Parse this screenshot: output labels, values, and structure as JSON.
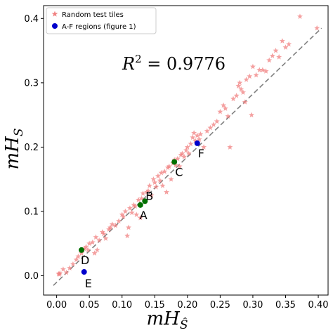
{
  "chart_data": {
    "type": "scatter",
    "xlabel": "mHŜ",
    "ylabel": "mH_S",
    "xlabel_base": "mH",
    "xlabel_sub": "Ŝ",
    "ylabel_base": "mH",
    "ylabel_sub": "S",
    "xlim": [
      -0.02,
      0.415
    ],
    "ylim": [
      -0.03,
      0.42
    ],
    "xticks": [
      0.0,
      0.05,
      0.1,
      0.15,
      0.2,
      0.25,
      0.3,
      0.35,
      0.4
    ],
    "xtick_labels": [
      "0.00",
      "0.05",
      "0.10",
      "0.15",
      "0.20",
      "0.25",
      "0.30",
      "0.35",
      "0.40"
    ],
    "yticks": [
      0.0,
      0.1,
      0.2,
      0.3,
      0.4
    ],
    "ytick_labels": [
      "0.0",
      "0.1",
      "0.2",
      "0.3",
      "0.4"
    ],
    "grid": false,
    "legend_position": "top-left",
    "annotation": "R² = 0.9776",
    "annotation_parts": {
      "base": "R",
      "sup": "2",
      "rest": " = 0.9776"
    },
    "fit_line": {
      "x": [
        -0.005,
        0.405
      ],
      "y": [
        -0.015,
        0.385
      ],
      "color": "#808080",
      "style": "dashed"
    },
    "series": [
      {
        "name": "Random test tiles",
        "marker": "star",
        "color": "#f08080",
        "points": [
          [
            0.003,
            0.003
          ],
          [
            0.004,
            0.002
          ],
          [
            0.005,
            0.004
          ],
          [
            0.01,
            0.01
          ],
          [
            0.015,
            0.005
          ],
          [
            0.02,
            0.012
          ],
          [
            0.025,
            0.018
          ],
          [
            0.03,
            0.025
          ],
          [
            0.033,
            0.03
          ],
          [
            0.038,
            0.035
          ],
          [
            0.04,
            0.04
          ],
          [
            0.042,
            0.042
          ],
          [
            0.045,
            0.045
          ],
          [
            0.048,
            0.04
          ],
          [
            0.05,
            0.05
          ],
          [
            0.055,
            0.052
          ],
          [
            0.058,
            0.035
          ],
          [
            0.06,
            0.06
          ],
          [
            0.062,
            0.04
          ],
          [
            0.065,
            0.055
          ],
          [
            0.07,
            0.068
          ],
          [
            0.072,
            0.065
          ],
          [
            0.075,
            0.058
          ],
          [
            0.08,
            0.072
          ],
          [
            0.082,
            0.075
          ],
          [
            0.085,
            0.08
          ],
          [
            0.09,
            0.078
          ],
          [
            0.095,
            0.085
          ],
          [
            0.1,
            0.095
          ],
          [
            0.102,
            0.092
          ],
          [
            0.105,
            0.1
          ],
          [
            0.108,
            0.062
          ],
          [
            0.11,
            0.075
          ],
          [
            0.112,
            0.105
          ],
          [
            0.115,
            0.098
          ],
          [
            0.118,
            0.11
          ],
          [
            0.12,
            0.108
          ],
          [
            0.122,
            0.095
          ],
          [
            0.125,
            0.118
          ],
          [
            0.128,
            0.09
          ],
          [
            0.13,
            0.12
          ],
          [
            0.132,
            0.128
          ],
          [
            0.135,
            0.115
          ],
          [
            0.138,
            0.13
          ],
          [
            0.14,
            0.132
          ],
          [
            0.142,
            0.14
          ],
          [
            0.145,
            0.125
          ],
          [
            0.148,
            0.15
          ],
          [
            0.15,
            0.145
          ],
          [
            0.152,
            0.138
          ],
          [
            0.155,
            0.155
          ],
          [
            0.158,
            0.148
          ],
          [
            0.16,
            0.16
          ],
          [
            0.162,
            0.14
          ],
          [
            0.165,
            0.162
          ],
          [
            0.168,
            0.13
          ],
          [
            0.17,
            0.168
          ],
          [
            0.172,
            0.17
          ],
          [
            0.175,
            0.15
          ],
          [
            0.178,
            0.175
          ],
          [
            0.18,
            0.18
          ],
          [
            0.182,
            0.172
          ],
          [
            0.185,
            0.182
          ],
          [
            0.188,
            0.17
          ],
          [
            0.19,
            0.188
          ],
          [
            0.192,
            0.19
          ],
          [
            0.195,
            0.185
          ],
          [
            0.198,
            0.195
          ],
          [
            0.2,
            0.2
          ],
          [
            0.202,
            0.19
          ],
          [
            0.205,
            0.205
          ],
          [
            0.208,
            0.215
          ],
          [
            0.21,
            0.222
          ],
          [
            0.212,
            0.21
          ],
          [
            0.215,
            0.218
          ],
          [
            0.218,
            0.212
          ],
          [
            0.22,
            0.22
          ],
          [
            0.225,
            0.2
          ],
          [
            0.23,
            0.225
          ],
          [
            0.235,
            0.23
          ],
          [
            0.24,
            0.235
          ],
          [
            0.245,
            0.24
          ],
          [
            0.25,
            0.255
          ],
          [
            0.255,
            0.265
          ],
          [
            0.258,
            0.26
          ],
          [
            0.262,
            0.248
          ],
          [
            0.265,
            0.2
          ],
          [
            0.27,
            0.275
          ],
          [
            0.275,
            0.28
          ],
          [
            0.278,
            0.295
          ],
          [
            0.28,
            0.3
          ],
          [
            0.282,
            0.29
          ],
          [
            0.285,
            0.285
          ],
          [
            0.288,
            0.27
          ],
          [
            0.29,
            0.305
          ],
          [
            0.295,
            0.31
          ],
          [
            0.298,
            0.25
          ],
          [
            0.3,
            0.325
          ],
          [
            0.305,
            0.312
          ],
          [
            0.31,
            0.32
          ],
          [
            0.315,
            0.32
          ],
          [
            0.32,
            0.318
          ],
          [
            0.325,
            0.335
          ],
          [
            0.33,
            0.342
          ],
          [
            0.335,
            0.35
          ],
          [
            0.34,
            0.34
          ],
          [
            0.345,
            0.365
          ],
          [
            0.35,
            0.355
          ],
          [
            0.355,
            0.36
          ],
          [
            0.372,
            0.403
          ],
          [
            0.398,
            0.385
          ]
        ]
      },
      {
        "name": "A-F regions (figure 1)",
        "marker": "circle",
        "colors": [
          "#007000",
          "#0000cc"
        ],
        "points": [
          {
            "x": 0.128,
            "y": 0.11,
            "label": "A",
            "color": "#007000"
          },
          {
            "x": 0.135,
            "y": 0.116,
            "label": "B",
            "color": "#007000"
          },
          {
            "x": 0.18,
            "y": 0.177,
            "label": "C",
            "color": "#007000"
          },
          {
            "x": 0.038,
            "y": 0.04,
            "label": "D",
            "color": "#007000"
          },
          {
            "x": 0.042,
            "y": 0.006,
            "label": "E",
            "color": "#0000cc"
          },
          {
            "x": 0.215,
            "y": 0.206,
            "label": "F",
            "color": "#0000cc"
          }
        ]
      }
    ]
  }
}
